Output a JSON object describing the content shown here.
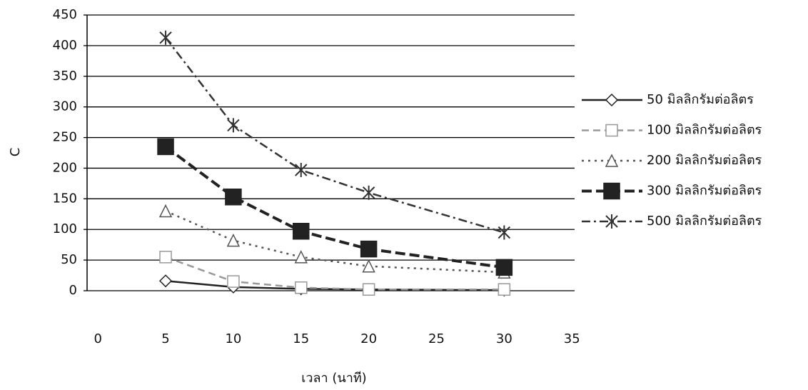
{
  "chart_data": {
    "type": "line",
    "x_label": "เวลา (นาที)",
    "y_label": "C",
    "x": [
      5,
      10,
      15,
      20,
      30
    ],
    "series": [
      {
        "name": "50 มิลลิกรัมต่อลิตร",
        "color": "#222222",
        "marker": "diamond",
        "dash": "none",
        "values": [
          16,
          6,
          3,
          2,
          1
        ]
      },
      {
        "name": "100 มิลลิกรัมต่อลิตร",
        "color": "#999999",
        "marker": "square",
        "dash": "10 6",
        "values": [
          55,
          15,
          5,
          2,
          2
        ]
      },
      {
        "name": "200 มิลลิกรัมต่อลิตร",
        "color": "#555555",
        "marker": "triangle",
        "dash": "3 6",
        "values": [
          130,
          82,
          55,
          40,
          30
        ]
      },
      {
        "name": "300 มิลลิกรัมต่อลิตร",
        "color": "#222222",
        "marker": "filled-square",
        "dash": "14 6",
        "values": [
          235,
          153,
          97,
          68,
          38
        ]
      },
      {
        "name": "500 มิลลิกรัมต่อลิตร",
        "color": "#333333",
        "marker": "star",
        "dash": "12 5 3 5",
        "values": [
          413,
          270,
          197,
          160,
          95
        ]
      }
    ],
    "xlim": [
      -0.8,
      35.2
    ],
    "xticks": [
      0,
      5,
      10,
      15,
      20,
      25,
      30,
      35
    ],
    "ylim": [
      0,
      450
    ],
    "yticks": [
      0,
      50,
      100,
      150,
      200,
      250,
      300,
      350,
      400,
      450
    ],
    "grid": true,
    "legend": "right"
  }
}
